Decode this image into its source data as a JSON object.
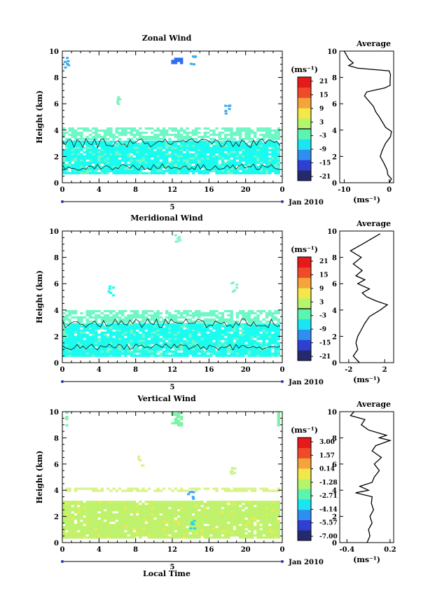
{
  "chart_data": [
    {
      "type": "heatmap",
      "title": "Zonal Wind",
      "ylabel": "Height (km)",
      "xlabel": "",
      "x_ticks": [
        "0",
        "4",
        "8",
        "12",
        "16",
        "20",
        "0"
      ],
      "y_ticks": [
        "0",
        "2",
        "4",
        "6",
        "8",
        "10"
      ],
      "xlim": [
        0,
        24
      ],
      "ylim": [
        0,
        10
      ],
      "day_label": "5",
      "date_label": "Jan 2010",
      "colorbar_unit": "(ms⁻¹)",
      "colorbar_ticks": [
        "21",
        "15",
        "9",
        "3",
        "-3",
        "-9",
        "-15",
        "-21"
      ],
      "contour_level": 0,
      "dominant_values": [
        {
          "height_range": [
            0.5,
            3.2
          ],
          "value": -8
        },
        {
          "height_range": [
            3.2,
            4.2
          ],
          "value": -4
        },
        {
          "height_range": [
            9.0,
            9.5
          ],
          "value": -12
        }
      ],
      "average": {
        "title": "Average",
        "xlabel": "(ms⁻¹)",
        "x_ticks": [
          "-10",
          "0"
        ],
        "y_ticks": [
          "0",
          "2",
          "4",
          "6",
          "8",
          "10"
        ],
        "xlim": [
          -11,
          1
        ],
        "profile_height": [
          0.0,
          0.3,
          0.6,
          1.0,
          1.5,
          2.0,
          2.5,
          3.0,
          3.5,
          3.9,
          4.2,
          4.6,
          5.0,
          5.4,
          5.8,
          6.2,
          6.6,
          6.9,
          7.2,
          7.4,
          7.8,
          8.2,
          8.5,
          8.7,
          8.9,
          9.1,
          9.4,
          9.7,
          10.0
        ],
        "profile_value": [
          0.0,
          0.5,
          -0.3,
          -0.5,
          -1.2,
          -2.0,
          -1.5,
          -0.8,
          0.3,
          0.5,
          -0.8,
          -1.5,
          -2.2,
          -3.0,
          -3.5,
          -4.5,
          -5.5,
          -5.0,
          -1.0,
          0.2,
          0.2,
          0.3,
          0.0,
          -7.0,
          -9.0,
          -8.0,
          -9.0,
          -9.5,
          -10.0
        ]
      }
    },
    {
      "type": "heatmap",
      "title": "Meridional Wind",
      "ylabel": "Height (km)",
      "xlabel": "",
      "x_ticks": [
        "0",
        "4",
        "8",
        "12",
        "16",
        "20",
        "0"
      ],
      "y_ticks": [
        "0",
        "2",
        "4",
        "6",
        "8",
        "10"
      ],
      "xlim": [
        0,
        24
      ],
      "ylim": [
        0,
        10
      ],
      "day_label": "5",
      "date_label": "Jan 2010",
      "colorbar_unit": "(ms⁻¹)",
      "colorbar_ticks": [
        "21",
        "15",
        "9",
        "3",
        "-3",
        "-9",
        "-15",
        "-21"
      ],
      "contour_level": 0,
      "dominant_values": [
        {
          "height_range": [
            0.3,
            3.0
          ],
          "value": -5
        },
        {
          "height_range": [
            3.0,
            4.0
          ],
          "value": -4
        }
      ],
      "average": {
        "title": "Average",
        "xlabel": "(ms⁻¹)",
        "x_ticks": [
          "-2",
          "2"
        ],
        "y_ticks": [
          "0",
          "2",
          "4",
          "6",
          "8",
          "10"
        ],
        "xlim": [
          -3,
          3
        ],
        "profile_height": [
          0.0,
          0.5,
          1.0,
          1.5,
          2.0,
          2.5,
          3.0,
          3.5,
          4.0,
          4.4,
          4.7,
          5.0,
          5.3,
          5.6,
          6.0,
          6.3,
          6.6,
          7.0,
          7.5,
          8.0,
          8.5,
          9.0,
          9.4,
          9.8
        ],
        "profile_value": [
          -0.8,
          -1.5,
          -1.0,
          -1.2,
          -1.0,
          -0.6,
          -0.2,
          0.3,
          1.5,
          2.3,
          1.0,
          0.0,
          -0.5,
          0.3,
          -1.0,
          -0.2,
          -1.2,
          -0.5,
          -1.5,
          -0.6,
          -1.8,
          -0.5,
          0.5,
          1.5
        ]
      }
    },
    {
      "type": "heatmap",
      "title": "Vertical Wind",
      "ylabel": "Height (km)",
      "xlabel": "Local Time",
      "x_ticks": [
        "0",
        "4",
        "8",
        "12",
        "16",
        "20",
        "0"
      ],
      "y_ticks": [
        "0",
        "2",
        "4",
        "6",
        "8",
        "10"
      ],
      "xlim": [
        0,
        24
      ],
      "ylim": [
        0,
        10
      ],
      "day_label": "5",
      "date_label": "Jan 2010",
      "colorbar_unit": "(ms⁻¹)",
      "colorbar_ticks": [
        "3.00",
        "1.57",
        "0.14",
        "-1.28",
        "-2.71",
        "-4.14",
        "-5.57",
        "-7.00"
      ],
      "dominant_values": [
        {
          "height_range": [
            0.2,
            3.2
          ],
          "value": 0.0
        },
        {
          "height_range": [
            3.8,
            4.2
          ],
          "value": 0.2
        },
        {
          "height_range": [
            8.8,
            10.0
          ],
          "value": -0.5
        }
      ],
      "average": {
        "title": "Average",
        "xlabel": "(ms⁻¹)",
        "x_ticks": [
          "-0.4",
          "0.2"
        ],
        "y_ticks": [
          "0",
          "2",
          "4",
          "6",
          "8",
          "10"
        ],
        "xlim": [
          -0.5,
          0.25
        ],
        "profile_height": [
          0.0,
          0.5,
          1.0,
          1.5,
          2.0,
          2.5,
          3.0,
          3.5,
          3.8,
          4.0,
          4.3,
          4.6,
          5.0,
          5.5,
          6.0,
          6.5,
          7.0,
          7.4,
          7.8,
          8.0,
          8.2,
          8.6,
          9.0,
          9.4,
          9.7,
          10.0
        ],
        "profile_value": [
          -0.12,
          -0.08,
          -0.1,
          -0.05,
          -0.08,
          -0.03,
          -0.06,
          -0.05,
          -0.28,
          -0.1,
          -0.22,
          -0.05,
          -0.02,
          0.05,
          -0.02,
          0.08,
          -0.05,
          0.0,
          0.2,
          0.05,
          0.15,
          -0.1,
          -0.2,
          -0.15,
          -0.35,
          -0.3
        ]
      }
    }
  ],
  "colors": {
    "zonal": {
      "dominant": "#19fbf0",
      "upper_band": "#6ff7c6",
      "top_patch": "#2f6cf0"
    },
    "meridional": {
      "dominant": "#19fbf0",
      "upper_band": "#6ff7c6"
    },
    "vertical": {
      "dominant": "#bff26b",
      "upper_band": "#d9f386",
      "top_patch": "#7ef3a8"
    },
    "colorbar_stops": [
      "#252a6e",
      "#2f3fcf",
      "#2f8ff0",
      "#1ae5f2",
      "#5cf5b0",
      "#b4f56b",
      "#f2e84a",
      "#f5a43a",
      "#ef4a2a",
      "#e61a1a"
    ]
  }
}
